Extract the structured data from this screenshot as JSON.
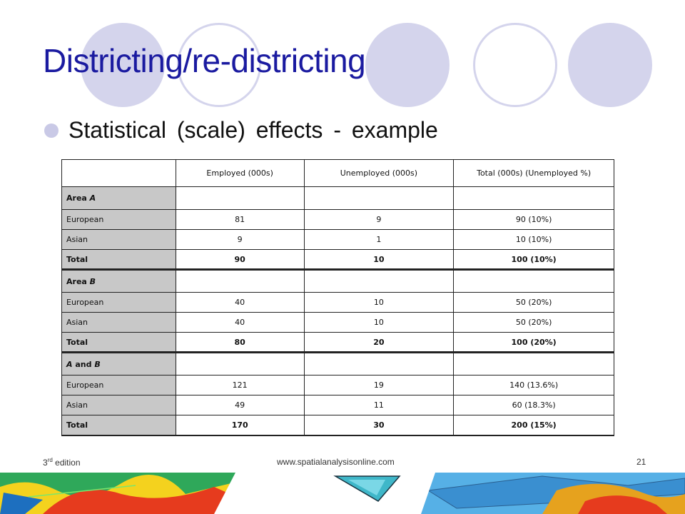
{
  "slide": {
    "title": "Districting/re-districting",
    "bullet": "Statistical (scale) effects - example"
  },
  "table": {
    "headers": [
      "",
      "Employed (000s)",
      "Unemployed (000s)",
      "Total (000s) (Unemployed %)"
    ],
    "areas": [
      {
        "label_parts": [
          "Area ",
          "A"
        ],
        "rows": [
          {
            "label": "European",
            "employed": "81",
            "unemployed": "9",
            "total": "90 (10%)"
          },
          {
            "label": "Asian",
            "employed": "9",
            "unemployed": "1",
            "total": "10 (10%)"
          },
          {
            "label": "Total",
            "employed": "90",
            "unemployed": "10",
            "total": "100 (10%)"
          }
        ]
      },
      {
        "label_parts": [
          "Area ",
          "B"
        ],
        "rows": [
          {
            "label": "European",
            "employed": "40",
            "unemployed": "10",
            "total": "50 (20%)"
          },
          {
            "label": "Asian",
            "employed": "40",
            "unemployed": "10",
            "total": "50 (20%)"
          },
          {
            "label": "Total",
            "employed": "80",
            "unemployed": "20",
            "total": "100 (20%)"
          }
        ]
      },
      {
        "label_parts": [
          "A",
          " and ",
          "B"
        ],
        "rows": [
          {
            "label": "European",
            "employed": "121",
            "unemployed": "19",
            "total": "140 (13.6%)"
          },
          {
            "label": "Asian",
            "employed": "49",
            "unemployed": "11",
            "total": "60 (18.3%)"
          },
          {
            "label": "Total",
            "employed": "170",
            "unemployed": "30",
            "total": "200 (15%)"
          }
        ]
      }
    ]
  },
  "footer": {
    "edition_number": "3",
    "edition_suffix": "rd",
    "edition_word": " edition",
    "url": "www.spatialanalysisonline.com",
    "page": "21"
  },
  "colors": {
    "title": "#1a1aa0",
    "circle_fill": "#d4d4ec",
    "row_label_bg": "#c8c8c8"
  }
}
